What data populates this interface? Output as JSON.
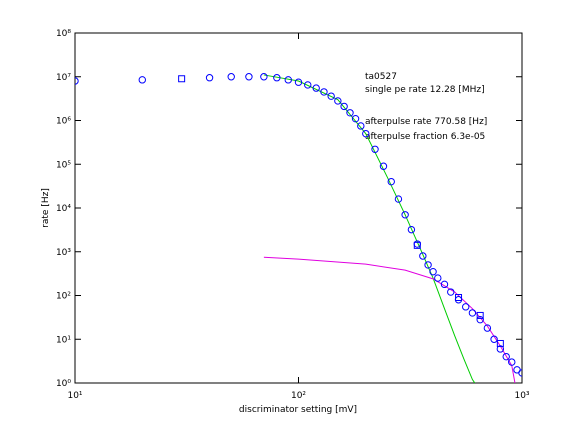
{
  "chart_data": {
    "type": "scatter",
    "xlabel": "discriminator setting [mV]",
    "ylabel": "rate [Hz]",
    "annotations": [
      "ta0527",
      "single pe rate 12.28 [MHz]",
      "afterpulse rate 770.58 [Hz]",
      "afterpulse fraction 6.3e-05"
    ],
    "xscale": "log",
    "yscale": "log",
    "xlim": [
      10,
      1000
    ],
    "ylim": [
      1,
      100000000
    ],
    "xticks": [
      {
        "value": 10,
        "label": "10¹"
      },
      {
        "value": 100,
        "label": "10²"
      },
      {
        "value": 1000,
        "label": "10³"
      }
    ],
    "yticks": [
      {
        "value": 1,
        "label": "10⁰"
      },
      {
        "value": 10,
        "label": "10¹"
      },
      {
        "value": 100,
        "label": "10²"
      },
      {
        "value": 1000,
        "label": "10³"
      },
      {
        "value": 10000,
        "label": "10⁴"
      },
      {
        "value": 100000,
        "label": "10⁵"
      },
      {
        "value": 1000000,
        "label": "10⁶"
      },
      {
        "value": 10000000,
        "label": "10⁷"
      },
      {
        "value": 100000000,
        "label": "10⁸"
      }
    ],
    "series": [
      {
        "marker": "circle",
        "color": "#0000ff",
        "x": [
          10,
          20,
          40,
          50,
          60,
          70,
          80,
          90,
          100,
          110,
          120,
          130,
          140,
          150,
          160,
          170,
          180,
          190,
          200,
          220,
          240,
          260,
          280,
          300,
          320,
          340,
          360,
          380,
          400,
          420,
          450,
          480,
          520,
          560,
          600,
          650,
          700,
          750,
          800,
          850,
          900,
          950,
          1000
        ],
        "values": [
          8000000,
          8500000,
          9500000,
          10000000,
          10000000,
          10000000,
          9500000,
          8500000,
          7500000,
          6500000,
          5500000,
          4500000,
          3600000,
          2800000,
          2100000,
          1500000,
          1100000,
          750000,
          500000,
          220000,
          90000,
          40000,
          16000,
          7000,
          3200,
          1500,
          800,
          500,
          350,
          250,
          180,
          120,
          80,
          55,
          40,
          28,
          18,
          10,
          6,
          4,
          3,
          2,
          1.7
        ]
      },
      {
        "marker": "square",
        "color": "#0000ff",
        "x": [
          30,
          340,
          520,
          650,
          800
        ],
        "values": [
          9000000,
          1400,
          90,
          35,
          8
        ]
      },
      {
        "marker": "line",
        "color": "#00cc00",
        "x": [
          70,
          100,
          150,
          200,
          250,
          300,
          350,
          400,
          450,
          500,
          550,
          600,
          615
        ],
        "values": [
          11000000,
          8000000,
          3000000,
          500000,
          50000,
          7000,
          1200,
          250,
          50,
          12,
          3.5,
          1.2,
          1
        ]
      },
      {
        "marker": "line",
        "color": "#e000e0",
        "x": [
          70,
          100,
          200,
          300,
          400,
          500,
          600,
          700,
          800,
          900,
          930
        ],
        "values": [
          750,
          680,
          520,
          380,
          240,
          120,
          50,
          20,
          7,
          2.5,
          1
        ]
      }
    ]
  }
}
